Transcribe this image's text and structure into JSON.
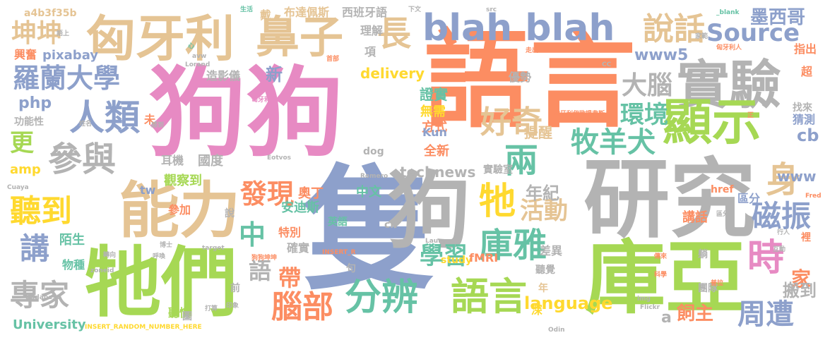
{
  "colors": {
    "pink": "#e78ac3",
    "orange": "#fc8d62",
    "green": "#a6d854",
    "blue": "#8da0cb",
    "gray": "#b3b3b3",
    "tan": "#e5c494",
    "teal": "#66c2a5",
    "yellow": "#ffd92f"
  },
  "words": [
    {
      "text": "狗狗",
      "color": "pink"
    },
    {
      "text": "語言",
      "color": "orange"
    },
    {
      "text": "隻",
      "color": "blue"
    },
    {
      "text": "狗",
      "color": "gray"
    },
    {
      "text": "研究",
      "color": "gray"
    },
    {
      "text": "庫亞",
      "color": "green"
    },
    {
      "text": "牠們",
      "color": "green"
    },
    {
      "text": "能力",
      "color": "tan"
    },
    {
      "text": "匈牙利",
      "color": "tan"
    },
    {
      "text": "鼻子",
      "color": "tan"
    },
    {
      "text": "實驗",
      "color": "gray"
    },
    {
      "text": "顯示",
      "color": "green"
    },
    {
      "text": "blah blah",
      "color": "blue"
    },
    {
      "text": "長",
      "color": "tan"
    },
    {
      "text": "說話",
      "color": "tan"
    },
    {
      "text": "語言",
      "color": "green"
    },
    {
      "text": "分辨",
      "color": "teal"
    },
    {
      "text": "人類",
      "color": "blue"
    },
    {
      "text": "羅蘭大學",
      "color": "blue"
    },
    {
      "text": "參與",
      "color": "gray"
    },
    {
      "text": "坤坤",
      "color": "tan"
    },
    {
      "text": "聽到",
      "color": "yellow"
    },
    {
      "text": "講",
      "color": "blue"
    },
    {
      "text": "專家",
      "color": "gray"
    },
    {
      "text": "中",
      "color": "teal"
    },
    {
      "text": "牠",
      "color": "yellow"
    },
    {
      "text": "兩",
      "color": "teal"
    },
    {
      "text": "好奇",
      "color": "tan"
    },
    {
      "text": "牧羊犬",
      "color": "teal"
    },
    {
      "text": "庫雅",
      "color": "teal"
    },
    {
      "text": "大腦",
      "color": "gray"
    },
    {
      "text": "環境",
      "color": "teal"
    },
    {
      "text": "Source",
      "color": "blue"
    },
    {
      "text": "身",
      "color": "tan"
    },
    {
      "text": "時",
      "color": "pink"
    },
    {
      "text": "磁振",
      "color": "blue"
    },
    {
      "text": "周遭",
      "color": "blue"
    },
    {
      "text": "腦部",
      "color": "orange"
    },
    {
      "text": "發現",
      "color": "orange"
    },
    {
      "text": "學習",
      "color": "teal"
    },
    {
      "text": "活動",
      "color": "tan"
    },
    {
      "text": "語",
      "color": "gray"
    },
    {
      "text": "帶",
      "color": "orange"
    },
    {
      "text": "年紀",
      "color": "gray"
    },
    {
      "text": "delivery",
      "color": "yellow"
    },
    {
      "text": "language",
      "color": "yellow"
    },
    {
      "text": "technews",
      "color": "gray"
    },
    {
      "text": "www5",
      "color": "blue"
    },
    {
      "text": "墨西哥",
      "color": "blue"
    },
    {
      "text": "飼主",
      "color": "orange"
    },
    {
      "text": "家",
      "color": "orange"
    },
    {
      "text": "搬到",
      "color": "gray"
    },
    {
      "text": "www",
      "color": "blue"
    },
    {
      "text": "cb",
      "color": "blue"
    },
    {
      "text": "University",
      "color": "teal"
    },
    {
      "text": "pixabay",
      "color": "blue"
    },
    {
      "text": "php",
      "color": "blue"
    },
    {
      "text": "amp",
      "color": "yellow"
    },
    {
      "text": "更",
      "color": "green"
    },
    {
      "text": "a",
      "color": "gray"
    },
    {
      "text": "新",
      "color": "blue"
    },
    {
      "text": "造影儀",
      "color": "gray"
    },
    {
      "text": "西班牙語",
      "color": "gray"
    },
    {
      "text": "布達佩斯",
      "color": "tan"
    },
    {
      "text": "理解",
      "color": "gray"
    },
    {
      "text": "項",
      "color": "gray"
    },
    {
      "text": "戴",
      "color": "tan"
    },
    {
      "text": "證實",
      "color": "teal"
    },
    {
      "text": "無需",
      "color": "yellow"
    },
    {
      "text": "方式",
      "color": "orange"
    },
    {
      "text": "提醒",
      "color": "tan"
    },
    {
      "text": "全新",
      "color": "orange"
    },
    {
      "text": "國度",
      "color": "gray"
    },
    {
      "text": "觀察到",
      "color": "green"
    },
    {
      "text": "奧丁",
      "color": "orange"
    },
    {
      "text": "中文",
      "color": "teal"
    },
    {
      "text": "安迪斯",
      "color": "teal"
    },
    {
      "text": "實驗室",
      "color": "gray"
    },
    {
      "text": "優勢",
      "color": "gray"
    },
    {
      "text": "耳機",
      "color": "gray"
    },
    {
      "text": "參加",
      "color": "orange"
    },
    {
      "text": "功能性",
      "color": "gray"
    },
    {
      "text": "陌生",
      "color": "teal"
    },
    {
      "text": "物種",
      "color": "teal"
    },
    {
      "text": "特別",
      "color": "orange"
    },
    {
      "text": "確實",
      "color": "gray"
    },
    {
      "text": "聽慣",
      "color": "green"
    },
    {
      "text": "差異",
      "color": "gray"
    },
    {
      "text": "聽覺",
      "color": "gray"
    },
    {
      "text": "講話",
      "color": "orange"
    },
    {
      "text": "區分",
      "color": "blue"
    },
    {
      "text": "猜測",
      "color": "blue"
    },
    {
      "text": "找來",
      "color": "gray"
    },
    {
      "text": "指出",
      "color": "orange"
    },
    {
      "text": "超",
      "color": "orange"
    },
    {
      "text": "興奮",
      "color": "orange"
    },
    {
      "text": "未",
      "color": "orange"
    },
    {
      "text": "英語",
      "color": "teal"
    },
    {
      "text": "說",
      "color": "gray"
    },
    {
      "text": "前",
      "color": "gray"
    },
    {
      "text": "句",
      "color": "gray"
    },
    {
      "text": "深",
      "color": "yellow"
    },
    {
      "text": "年",
      "color": "tan"
    },
    {
      "text": "躺",
      "color": "gray"
    },
    {
      "text": "團隊",
      "color": "gray"
    },
    {
      "text": "圖",
      "color": "gray"
    },
    {
      "text": "tw",
      "color": "blue"
    },
    {
      "text": "Kun",
      "color": "blue"
    },
    {
      "text": "dog",
      "color": "gray"
    },
    {
      "text": "study",
      "color": "yellow"
    },
    {
      "text": "fMRI",
      "color": "orange"
    },
    {
      "text": "ck",
      "color": "gray"
    },
    {
      "text": "a4b3f35b",
      "color": "tan"
    },
    {
      "text": "裡",
      "color": "orange"
    },
    {
      "text": "href",
      "color": "orange"
    },
    {
      "text": "INSERT_RANDOM_NUMBER_HERE",
      "color": "yellow"
    },
    {
      "text": "INSERT_R",
      "color": "orange"
    },
    {
      "text": "zoneid",
      "color": "gray"
    },
    {
      "text": "Budapest",
      "color": "gray"
    },
    {
      "text": "target",
      "color": "gray"
    },
    {
      "text": "Laura",
      "color": "gray"
    },
    {
      "text": "Flickr",
      "color": "gray"
    },
    {
      "text": "Fred",
      "color": "orange"
    },
    {
      "text": "Romero",
      "color": "gray"
    },
    {
      "text": "Eotvos",
      "color": "gray"
    },
    {
      "text": "Cuaya",
      "color": "gray"
    },
    {
      "text": "Lorand",
      "color": "gray"
    },
    {
      "text": "avw",
      "color": "gray"
    },
    {
      "text": "src",
      "color": "gray"
    },
    {
      "text": "_blank",
      "color": "teal"
    },
    {
      "text": "img",
      "color": "gray"
    },
    {
      "text": "Odin",
      "color": "gray"
    },
    {
      "text": "CC",
      "color": "gray"
    },
    {
      "text": "生活",
      "color": "teal"
    },
    {
      "text": "語上",
      "color": "gray"
    },
    {
      "text": "下文",
      "color": "gray"
    },
    {
      "text": "心",
      "color": "teal"
    },
    {
      "text": "首部",
      "color": "orange"
    },
    {
      "text": "走出",
      "color": "orange"
    },
    {
      "text": "匈牙利人",
      "color": "orange"
    },
    {
      "text": "匈牙利語",
      "color": "pink"
    },
    {
      "text": "匈牙利伊歐提弗斯",
      "color": "orange"
    },
    {
      "text": "狗狗坤坤",
      "color": "orange"
    },
    {
      "text": "傳來",
      "color": "orange"
    },
    {
      "text": "科學",
      "color": "orange"
    },
    {
      "text": "區分",
      "color": "gray"
    },
    {
      "text": "打算",
      "color": "gray"
    },
    {
      "text": "博士",
      "color": "gray"
    },
    {
      "text": "呼喚",
      "color": "gray"
    },
    {
      "text": "印象",
      "color": "gray"
    },
    {
      "text": "轉向",
      "color": "gray"
    },
    {
      "text": "行人",
      "color": "gray"
    },
    {
      "text": "互動",
      "color": "gray"
    },
    {
      "text": "姓名",
      "color": "gray"
    },
    {
      "text": "家範",
      "color": "gray"
    },
    {
      "text": "感到",
      "color": "gray"
    },
    {
      "text": "正",
      "color": "orange"
    },
    {
      "text": "普拉",
      "color": "orange"
    }
  ]
}
